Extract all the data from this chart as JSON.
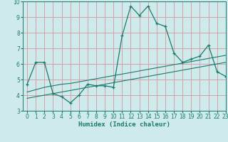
{
  "x": [
    0,
    1,
    2,
    3,
    4,
    5,
    6,
    7,
    8,
    9,
    10,
    11,
    12,
    13,
    14,
    15,
    16,
    17,
    18,
    19,
    20,
    21,
    22,
    23
  ],
  "y_main": [
    4.7,
    6.1,
    6.1,
    4.1,
    3.9,
    3.5,
    4.0,
    4.7,
    4.6,
    4.6,
    4.5,
    7.8,
    9.7,
    9.1,
    9.7,
    8.6,
    8.4,
    6.7,
    6.1,
    6.3,
    6.5,
    7.2,
    5.5,
    5.2
  ],
  "y_trend1": [
    3.8,
    3.9,
    4.0,
    4.1,
    4.2,
    4.3,
    4.4,
    4.5,
    4.6,
    4.7,
    4.8,
    4.9,
    5.0,
    5.1,
    5.2,
    5.3,
    5.4,
    5.5,
    5.6,
    5.7,
    5.8,
    5.9,
    6.0,
    6.1
  ],
  "y_trend2": [
    4.2,
    4.35,
    4.5,
    4.6,
    4.7,
    4.75,
    4.85,
    4.95,
    5.05,
    5.15,
    5.25,
    5.35,
    5.45,
    5.55,
    5.65,
    5.75,
    5.85,
    5.95,
    6.05,
    6.15,
    6.25,
    6.35,
    6.45,
    6.55
  ],
  "line_color": "#1a7a6e",
  "bg_color": "#ceeaea",
  "grid_color": "#d4a0a8",
  "xlabel": "Humidex (Indice chaleur)",
  "ylim": [
    3,
    10
  ],
  "xlim": [
    -0.5,
    23
  ],
  "yticks": [
    3,
    4,
    5,
    6,
    7,
    8,
    9,
    10
  ],
  "xticks": [
    0,
    1,
    2,
    3,
    4,
    5,
    6,
    7,
    8,
    9,
    10,
    11,
    12,
    13,
    14,
    15,
    16,
    17,
    18,
    19,
    20,
    21,
    22,
    23
  ]
}
